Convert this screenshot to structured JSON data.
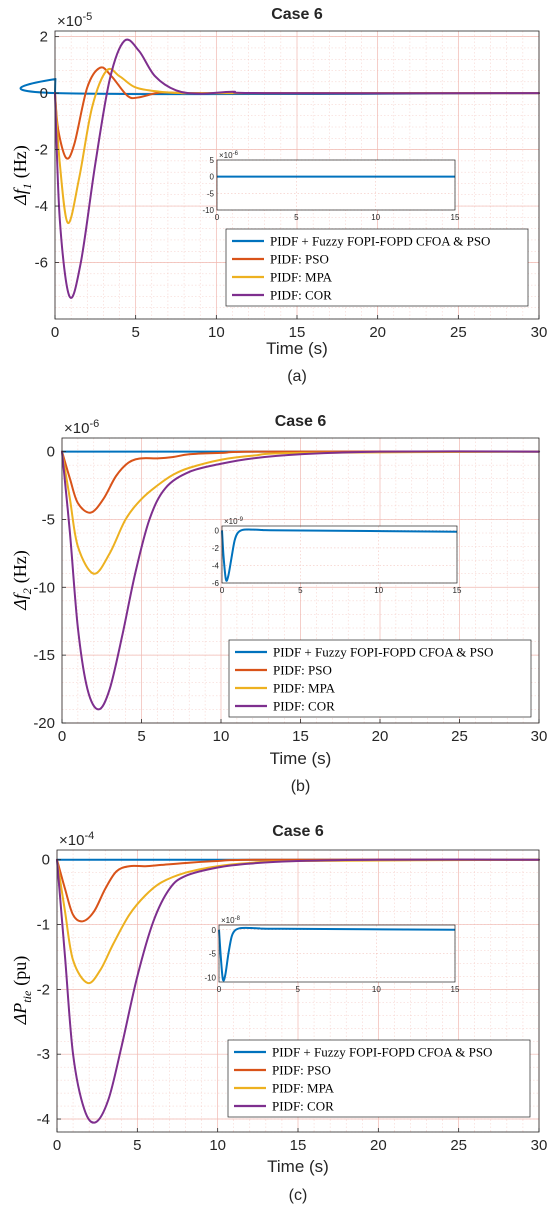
{
  "panels": [
    {
      "title": "Case 6",
      "ylabel_main": "Δf",
      "ylabel_sub": "1",
      "ylabel_unit": "(Hz)",
      "exponent_base": "×10",
      "exponent_power": "-5",
      "xlabel": "Time (s)",
      "caption": "(a)"
    },
    {
      "title": "Case 6",
      "ylabel_main": "Δf",
      "ylabel_sub": "2",
      "ylabel_unit": "(Hz)",
      "exponent_base": "×10",
      "exponent_power": "-6",
      "xlabel": "Time (s)",
      "caption": "(b)"
    },
    {
      "title": "Case 6",
      "ylabel_main": "ΔP",
      "ylabel_sub": "tie",
      "ylabel_unit": "(pu)",
      "exponent_base": "×10",
      "exponent_power": "-4",
      "xlabel": "Time (s)",
      "caption": "(c)"
    }
  ],
  "legend": [
    "PIDF + Fuzzy FOPI-FOPD CFOA & PSO",
    "PIDF: PSO",
    "PIDF: MPA",
    "PIDF: COR"
  ],
  "colors": {
    "fuzzy": "#0072BD",
    "pso": "#D95319",
    "mpa": "#EDB120",
    "cor": "#7E2F8E",
    "grid": "#f0b8b0",
    "axis": "#262626"
  },
  "chart_data": [
    {
      "type": "line",
      "title": "Case 6",
      "xlabel": "Time (s)",
      "ylabel": "Δf1 (Hz)",
      "y_exponent": -5,
      "xlim": [
        0,
        30
      ],
      "ylim": [
        -8,
        2.2
      ],
      "xticks": [
        0,
        5,
        10,
        15,
        20,
        25,
        30
      ],
      "yticks": [
        2,
        0,
        -2,
        -4,
        -6
      ],
      "grid": true,
      "legend_position": "lower-right",
      "series": [
        {
          "name": "PIDF + Fuzzy FOPI-FOPD CFOA & PSO",
          "x": [
            0,
            0.03,
            0.1,
            30
          ],
          "y": [
            0,
            0.5,
            0,
            0
          ]
        },
        {
          "name": "PIDF: PSO",
          "x": [
            0,
            0.2,
            0.7,
            1.2,
            2,
            2.8,
            3.5,
            4.5,
            5.2,
            6.5,
            8,
            10,
            30
          ],
          "y": [
            0,
            -1.3,
            -2.3,
            -1.8,
            0.2,
            0.9,
            0.6,
            -0.1,
            -0.15,
            0.02,
            0,
            0,
            0
          ]
        },
        {
          "name": "PIDF: MPA",
          "x": [
            0,
            0.3,
            0.8,
            1.5,
            2.3,
            3.2,
            4,
            5,
            6.5,
            8,
            10,
            30
          ],
          "y": [
            0,
            -2.5,
            -4.6,
            -3,
            -0.5,
            0.8,
            0.6,
            0.2,
            0.05,
            0,
            0,
            0
          ]
        },
        {
          "name": "PIDF: COR",
          "x": [
            0,
            0.3,
            0.9,
            1.6,
            2.5,
            3.4,
            4.3,
            5.2,
            6.2,
            7.5,
            9,
            11,
            13,
            30
          ],
          "y": [
            0,
            -4.5,
            -7.2,
            -6,
            -2.5,
            0.5,
            1.85,
            1.5,
            0.6,
            0.1,
            -0.02,
            0.05,
            0,
            0
          ]
        }
      ]
    },
    {
      "type": "line",
      "title": "Case 6",
      "xlabel": "Time (s)",
      "ylabel": "Δf2 (Hz)",
      "y_exponent": -6,
      "xlim": [
        0,
        30
      ],
      "ylim": [
        -20,
        1
      ],
      "xticks": [
        0,
        5,
        10,
        15,
        20,
        25,
        30
      ],
      "yticks": [
        0,
        -5,
        -10,
        -15,
        -20
      ],
      "grid": true,
      "legend_position": "lower-right",
      "series": [
        {
          "name": "PIDF + Fuzzy FOPI-FOPD CFOA & PSO",
          "x": [
            0,
            30
          ],
          "y": [
            0,
            0
          ]
        },
        {
          "name": "PIDF: PSO",
          "x": [
            0,
            0.5,
            1,
            1.8,
            2.6,
            3.4,
            4.2,
            5,
            6,
            7,
            8,
            10,
            13,
            30
          ],
          "y": [
            0,
            -2,
            -3.8,
            -4.5,
            -3.5,
            -1.8,
            -0.8,
            -0.5,
            -0.5,
            -0.4,
            -0.2,
            -0.1,
            0,
            0
          ]
        },
        {
          "name": "PIDF: MPA",
          "x": [
            0,
            0.5,
            1,
            2,
            3,
            4,
            5,
            6,
            7,
            8,
            10,
            12,
            15,
            30
          ],
          "y": [
            0,
            -3.5,
            -7,
            -9,
            -7.5,
            -5,
            -3.5,
            -2.5,
            -1.7,
            -1.2,
            -0.6,
            -0.3,
            -0.1,
            0
          ]
        },
        {
          "name": "PIDF: COR",
          "x": [
            0,
            0.5,
            1,
            1.6,
            2.3,
            3,
            3.8,
            4.6,
            5.5,
            6.5,
            8,
            10,
            12,
            15,
            20,
            30
          ],
          "y": [
            0,
            -6,
            -13,
            -17.5,
            -19,
            -17.5,
            -13.5,
            -9,
            -5,
            -2.7,
            -1.5,
            -0.9,
            -0.5,
            -0.2,
            0,
            0
          ]
        }
      ]
    },
    {
      "type": "line",
      "title": "Case 6",
      "xlabel": "Time (s)",
      "ylabel": "ΔPtie (pu)",
      "y_exponent": -4,
      "xlim": [
        0,
        30
      ],
      "ylim": [
        -4.2,
        0.15
      ],
      "xticks": [
        0,
        5,
        10,
        15,
        20,
        25,
        30
      ],
      "yticks": [
        0,
        -1,
        -2,
        -3,
        -4
      ],
      "grid": true,
      "legend_position": "lower-right",
      "series": [
        {
          "name": "PIDF + Fuzzy FOPI-FOPD CFOA & PSO",
          "x": [
            0,
            30
          ],
          "y": [
            0,
            0
          ]
        },
        {
          "name": "PIDF: PSO",
          "x": [
            0,
            0.5,
            1,
            1.6,
            2.3,
            3,
            3.7,
            4.5,
            5.5,
            6.5,
            8,
            10,
            13,
            30
          ],
          "y": [
            0,
            -0.45,
            -0.85,
            -0.95,
            -0.8,
            -0.45,
            -0.18,
            -0.1,
            -0.1,
            -0.08,
            -0.05,
            -0.02,
            0,
            0
          ]
        },
        {
          "name": "PIDF: MPA",
          "x": [
            0,
            0.5,
            1,
            1.9,
            2.7,
            3.5,
            4.5,
            5.5,
            6.5,
            8,
            10,
            12,
            15,
            30
          ],
          "y": [
            0,
            -0.8,
            -1.55,
            -1.9,
            -1.7,
            -1.3,
            -0.85,
            -0.55,
            -0.35,
            -0.2,
            -0.1,
            -0.05,
            -0.02,
            0
          ]
        },
        {
          "name": "PIDF: COR",
          "x": [
            0,
            0.5,
            1,
            1.7,
            2.4,
            3.2,
            4,
            5,
            6,
            7,
            8,
            10,
            12,
            15,
            20,
            30
          ],
          "y": [
            0,
            -1.5,
            -3,
            -3.85,
            -4.05,
            -3.7,
            -2.9,
            -1.8,
            -0.95,
            -0.45,
            -0.25,
            -0.12,
            -0.06,
            -0.02,
            0,
            0
          ]
        }
      ]
    }
  ],
  "insets": [
    {
      "exponent_base": "×10",
      "exponent_power": "-6",
      "xlim": [
        0,
        15
      ],
      "ylim": [
        -10,
        5
      ],
      "xticks": [
        0,
        5,
        10,
        15
      ],
      "yticks": [
        5,
        0,
        -5,
        -10
      ],
      "series": {
        "name": "PIDF + Fuzzy FOPI-FOPD CFOA & PSO",
        "x": [
          0,
          15
        ],
        "y": [
          0,
          0
        ]
      }
    },
    {
      "exponent_base": "×10",
      "exponent_power": "-9",
      "xlim": [
        0,
        15
      ],
      "ylim": [
        -6,
        0.5
      ],
      "xticks": [
        0,
        5,
        10,
        15
      ],
      "yticks": [
        0,
        -2,
        -4,
        -6
      ],
      "series": {
        "name": "PIDF + Fuzzy FOPI-FOPD CFOA & PSO",
        "x": [
          0,
          0.1,
          0.25,
          0.4,
          0.6,
          0.8,
          1.0,
          1.3,
          1.7,
          2.5,
          4,
          15
        ],
        "y": [
          0,
          -3,
          -5.6,
          -5.2,
          -3.2,
          -1.2,
          -0.3,
          0.05,
          0.1,
          0.05,
          0,
          -0.15
        ]
      }
    },
    {
      "exponent_base": "×10",
      "exponent_power": "-8",
      "xlim": [
        0,
        15
      ],
      "ylim": [
        -11,
        1
      ],
      "xticks": [
        0,
        5,
        10,
        15
      ],
      "yticks": [
        0,
        -5,
        -10
      ],
      "series": {
        "name": "PIDF + Fuzzy FOPI-FOPD CFOA & PSO",
        "x": [
          0,
          0.12,
          0.25,
          0.4,
          0.6,
          0.8,
          1.0,
          1.3,
          1.7,
          2.5,
          4,
          15
        ],
        "y": [
          0,
          -6,
          -10.5,
          -9.5,
          -5,
          -1.5,
          -0.2,
          0.3,
          0.4,
          0.3,
          0.2,
          0
        ]
      }
    }
  ]
}
